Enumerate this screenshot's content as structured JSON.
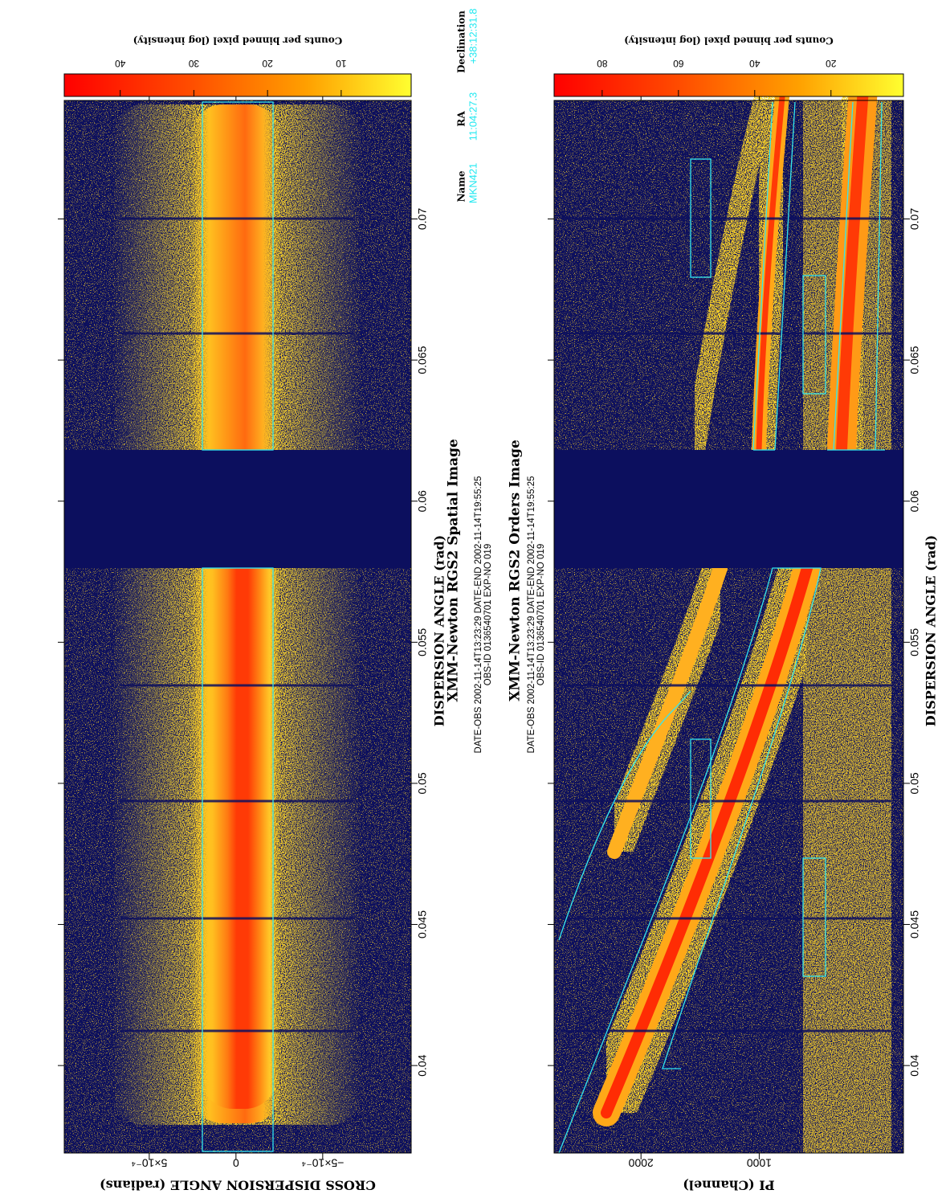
{
  "chart_data": [
    {
      "type": "image",
      "title": "XMM-Newton   RGS2 Spatial Image",
      "subtitle": [
        "DATE-OBS 2002-11-14T13:23:29   DATE-END 2002-11-14T19:55:25",
        "OBS-ID 0136540701 EXP-NO 019"
      ],
      "x_label": "DISPERSION ANGLE (rad)",
      "y_label": "CROSS DISPERSION ANGLE (radians)",
      "xlim": [
        0.0369,
        0.0742
      ],
      "xticks": [
        0.04,
        0.045,
        0.05,
        0.055,
        0.06,
        0.065,
        0.07
      ],
      "ylim": [
        -0.00101,
        0.00099
      ],
      "yticks": [
        {
          "value": -0.0005,
          "label": "−5×10⁻⁴"
        },
        0,
        {
          "value": 0.0005,
          "label": "5×10⁻⁴"
        }
      ],
      "colorbar": {
        "label": "Counts per binned pixel (log intensity)",
        "lim": [
          0.5,
          47.6
        ],
        "ticks": [
          10,
          20,
          30,
          40
        ]
      }
    },
    {
      "type": "image",
      "title": "XMM-Newton   RGS2 Orders Image",
      "subtitle": [
        "DATE-OBS 2002-11-14T13:23:29   DATE-END 2002-11-14T19:55:25",
        "OBS-ID 0136540701 EXP-NO 019"
      ],
      "x_label": "DISPERSION ANGLE (rad)",
      "y_label": "PI (Channel)",
      "xlim": [
        0.0369,
        0.0742
      ],
      "xticks": [
        0.04,
        0.045,
        0.05,
        0.055,
        0.06,
        0.065,
        0.07
      ],
      "ylim": [
        -220,
        2735
      ],
      "yticks": [
        1000,
        2000
      ],
      "colorbar": {
        "label": "Counts per binned pixel (log intensity)",
        "lim": [
          1,
          92.6
        ],
        "ticks": [
          20,
          40,
          60,
          80
        ]
      }
    }
  ],
  "target": {
    "headers": [
      "Name",
      "RA",
      "Declination"
    ],
    "values": [
      "MKN421",
      "11:04:27.3",
      "+38:12:31.8"
    ]
  }
}
